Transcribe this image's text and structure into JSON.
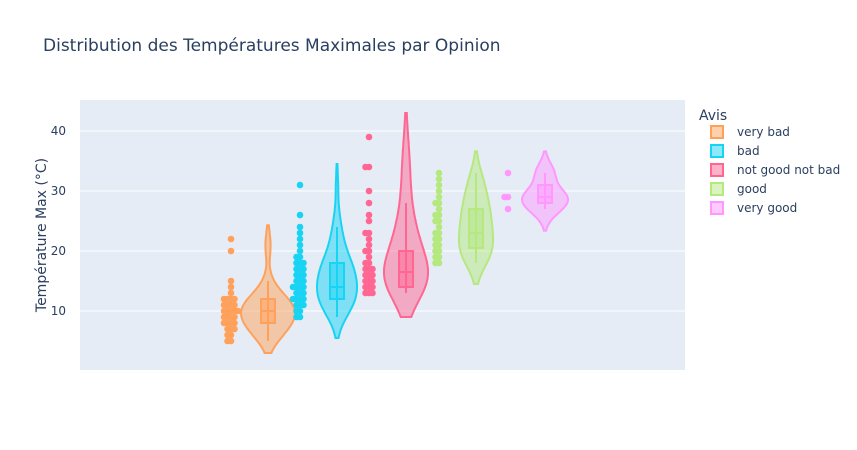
{
  "chart_data": {
    "type": "violin",
    "title": "Distribution des Températures Maximales par Opinion",
    "xlabel": "",
    "ylabel": "Température Max (°C)",
    "ylim": [
      0.2,
      45.2
    ],
    "yticks": [
      10,
      20,
      30,
      40
    ],
    "grid": true,
    "legend_title": "Avis",
    "legend_position": "right",
    "points": "all",
    "box": true,
    "series": [
      {
        "name": "very bad",
        "color": "#FFA15A",
        "box": {
          "q1": 8,
          "median": 10,
          "q3": 12,
          "whisker_low": 5,
          "whisker_high": 15
        },
        "kde_range": [
          3,
          24.3
        ],
        "points": [
          5,
          5,
          6,
          6,
          7,
          7,
          7,
          8,
          8,
          8,
          8,
          9,
          9,
          9,
          9,
          10,
          10,
          10,
          10,
          10,
          11,
          11,
          11,
          11,
          12,
          12,
          12,
          12,
          13,
          14,
          15,
          20,
          22
        ]
      },
      {
        "name": "bad",
        "color": "#19D3F3",
        "box": {
          "q1": 12,
          "median": 14,
          "q3": 18,
          "whisker_low": 9,
          "whisker_high": 24
        },
        "kde_range": [
          5.5,
          34.5
        ],
        "points": [
          9,
          9,
          10,
          10,
          11,
          11,
          11,
          12,
          12,
          12,
          12,
          13,
          13,
          13,
          14,
          14,
          14,
          14,
          15,
          15,
          15,
          16,
          16,
          16,
          17,
          17,
          17,
          18,
          18,
          18,
          19,
          19,
          20,
          21,
          22,
          23,
          24,
          26,
          31
        ]
      },
      {
        "name": "not good not bad",
        "color": "#FF6692",
        "box": {
          "q1": 14,
          "median": 16.5,
          "q3": 20,
          "whisker_low": 13,
          "whisker_high": 28
        },
        "kde_range": [
          9,
          43
        ],
        "points": [
          13,
          13,
          13,
          14,
          14,
          14,
          15,
          15,
          15,
          16,
          16,
          16,
          17,
          17,
          17,
          18,
          18,
          19,
          20,
          20,
          21,
          22,
          23,
          23,
          25,
          26,
          28,
          30,
          34,
          34,
          39
        ]
      },
      {
        "name": "good",
        "color": "#B6E880",
        "box": {
          "q1": 20.5,
          "median": 23,
          "q3": 27,
          "whisker_low": 18,
          "whisker_high": 33
        },
        "kde_range": [
          14.5,
          36.6
        ],
        "points": [
          18,
          18,
          19,
          19,
          20,
          20,
          21,
          21,
          22,
          22,
          23,
          23,
          24,
          25,
          25,
          26,
          26,
          27,
          28,
          28,
          29,
          30,
          31,
          32,
          33
        ]
      },
      {
        "name": "very good",
        "color": "#FF97FF",
        "box": {
          "q1": 28,
          "median": 29,
          "q3": 31,
          "whisker_low": 27,
          "whisker_high": 33
        },
        "kde_range": [
          23.4,
          36.6
        ],
        "points": [
          27,
          29,
          29,
          33
        ]
      }
    ]
  }
}
